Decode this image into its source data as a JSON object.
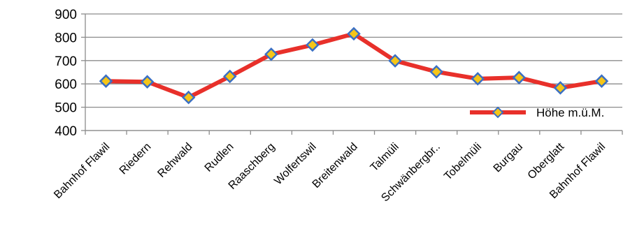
{
  "chart_data": {
    "type": "line",
    "categories": [
      "Bahnhof Flawil",
      "Riedern",
      "Rehwald",
      "Rudlen",
      "Raaschberg",
      "Wolfertswil",
      "Breitenwald",
      "Talmüli",
      "Schwänbergbr..",
      "Tobelmüli",
      "Burgau",
      "Oberglatt",
      "Bahnhof Flawil"
    ],
    "series": [
      {
        "name": "Höhe m.ü.M.",
        "values": [
          612,
          609,
          542,
          632,
          727,
          767,
          815,
          699,
          652,
          622,
          627,
          583,
          612
        ],
        "line_color": "#e8302a",
        "marker_fill": "#f5c518",
        "marker_stroke": "#3a6fc4"
      }
    ],
    "ylim": [
      400,
      900
    ],
    "yticks": [
      "400",
      "500",
      "600",
      "700",
      "800",
      "900"
    ],
    "grid": true,
    "legend": "right"
  }
}
